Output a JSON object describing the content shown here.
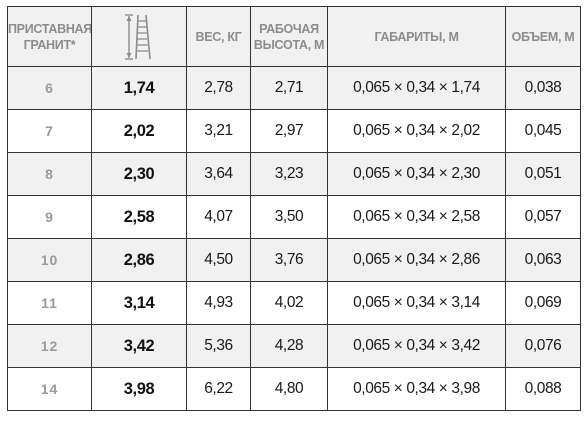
{
  "header": {
    "model_label": "ПРИСТАВНАЯ ГРАНИТ*",
    "length_icon": "ladder-height-icon",
    "weight_label": "ВЕС, КГ",
    "work_height_label": "РАБОЧАЯ ВЫСОТА, М",
    "dimensions_label": "ГАБАРИТЫ, М",
    "volume_label": "ОБЪЕМ, М"
  },
  "rows": [
    {
      "model": "6",
      "length": "1,74",
      "weight": "2,78",
      "work_height": "2,71",
      "dimensions": "0,065 × 0,34 × 1,74",
      "volume": "0,038"
    },
    {
      "model": "7",
      "length": "2,02",
      "weight": "3,21",
      "work_height": "2,97",
      "dimensions": "0,065 × 0,34 × 2,02",
      "volume": "0,045"
    },
    {
      "model": "8",
      "length": "2,30",
      "weight": "3,64",
      "work_height": "3,23",
      "dimensions": "0,065 × 0,34 × 2,30",
      "volume": "0,051"
    },
    {
      "model": "9",
      "length": "2,58",
      "weight": "4,07",
      "work_height": "3,50",
      "dimensions": "0,065 × 0,34 × 2,58",
      "volume": "0,057"
    },
    {
      "model": "10",
      "length": "2,86",
      "weight": "4,50",
      "work_height": "3,76",
      "dimensions": "0,065 × 0,34 × 2,86",
      "volume": "0,063"
    },
    {
      "model": "11",
      "length": "3,14",
      "weight": "4,93",
      "work_height": "4,02",
      "dimensions": "0,065 × 0,34 × 3,14",
      "volume": "0,069"
    },
    {
      "model": "12",
      "length": "3,42",
      "weight": "5,36",
      "work_height": "4,28",
      "dimensions": "0,065 × 0,34 × 3,42",
      "volume": "0,076"
    },
    {
      "model": "14",
      "length": "3,98",
      "weight": "6,22",
      "work_height": "4,80",
      "dimensions": "0,065 × 0,34 × 3,98",
      "volume": "0,088"
    }
  ],
  "colors": {
    "header_text": "#8c8c8c",
    "row_shade": "#f1f1f1",
    "border": "#333333"
  }
}
